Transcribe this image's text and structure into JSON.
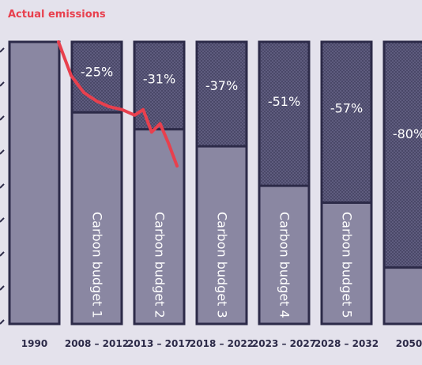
{
  "chart_data": {
    "type": "bar",
    "title": "",
    "legend": {
      "label": "Actual emissions",
      "color": "#e8404e",
      "placement": "top-left"
    },
    "colors": {
      "background": "#e4e2ec",
      "bar_fill": "#8a87a2",
      "reduction_fill": "#4a4868",
      "border": "#2c2a48",
      "actual_line": "#e8404e"
    },
    "baseline_value": 100,
    "bars": [
      {
        "category": "1990",
        "value": 100,
        "reduction": "",
        "label": ""
      },
      {
        "category": "2008 – 2012",
        "value": 75,
        "reduction": "-25%",
        "label": "Carbon budget 1"
      },
      {
        "category": "2013 – 2017",
        "value": 69,
        "reduction": "-31%",
        "label": "Carbon budget 2"
      },
      {
        "category": "2018 – 2022",
        "value": 63,
        "reduction": "-37%",
        "label": "Carbon budget 3"
      },
      {
        "category": "2023 – 2027",
        "value": 49,
        "reduction": "-51%",
        "label": "Carbon budget 4"
      },
      {
        "category": "2028 – 2032",
        "value": 43,
        "reduction": "-57%",
        "label": "Carbon budget 5"
      },
      {
        "category": "2050",
        "value": 20,
        "reduction": "-80%",
        "label": ""
      }
    ],
    "actual_emissions": {
      "name": "Actual emissions",
      "points": [
        {
          "year": 1990,
          "value": 100
        },
        {
          "year": 1993,
          "value": 88
        },
        {
          "year": 1996,
          "value": 82
        },
        {
          "year": 1999,
          "value": 79
        },
        {
          "year": 2002,
          "value": 77
        },
        {
          "year": 2005,
          "value": 76
        },
        {
          "year": 2008,
          "value": 74
        },
        {
          "year": 2010,
          "value": 76
        },
        {
          "year": 2012,
          "value": 68
        },
        {
          "year": 2014,
          "value": 71
        },
        {
          "year": 2016,
          "value": 64
        },
        {
          "year": 2018,
          "value": 56
        }
      ]
    }
  }
}
